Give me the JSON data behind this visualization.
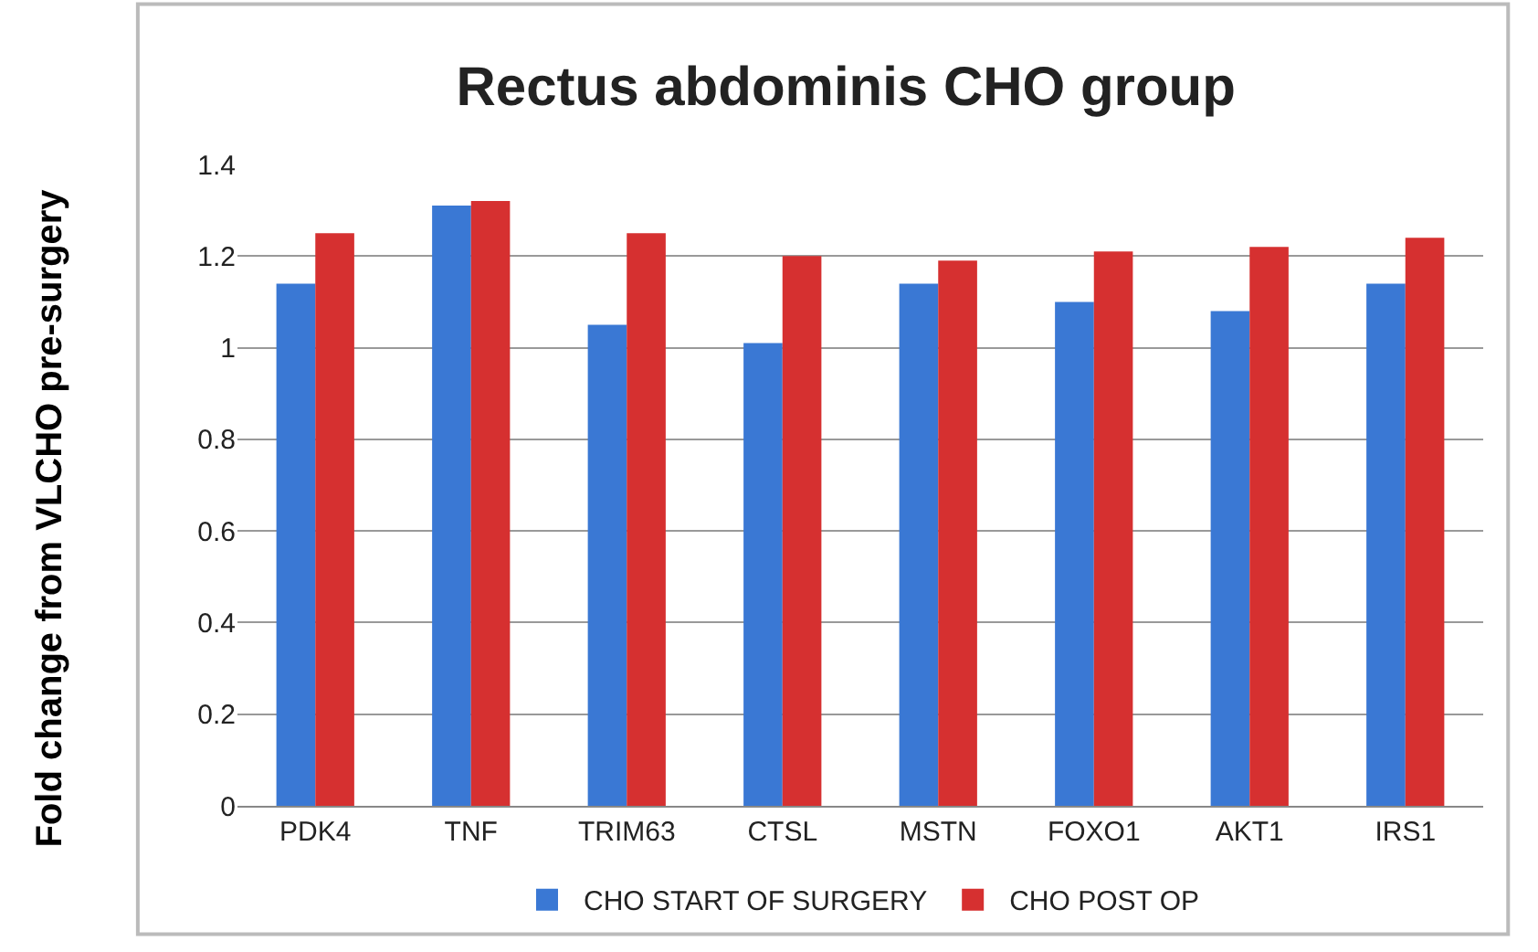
{
  "chart_data": {
    "type": "bar",
    "title": "Rectus abdominis CHO group",
    "ylabel": "Fold change from VLCHO pre-surgery",
    "categories": [
      "PDK4",
      "TNF",
      "TRIM63",
      "CTSL",
      "MSTN",
      "FOXO1",
      "AKT1",
      "IRS1"
    ],
    "series": [
      {
        "name": "CHO START OF SURGERY",
        "color": "#3a78d4",
        "values": [
          1.14,
          1.31,
          1.05,
          1.01,
          1.14,
          1.1,
          1.08,
          1.14
        ]
      },
      {
        "name": "CHO POST OP",
        "color": "#d63030",
        "values": [
          1.25,
          1.32,
          1.25,
          1.2,
          1.19,
          1.21,
          1.22,
          1.24
        ]
      }
    ],
    "ylim": [
      0,
      1.4
    ],
    "yticks": [
      0,
      0.2,
      0.4,
      0.6,
      0.8,
      1,
      1.2,
      1.4
    ],
    "grid": "y",
    "legend": "bottom"
  }
}
